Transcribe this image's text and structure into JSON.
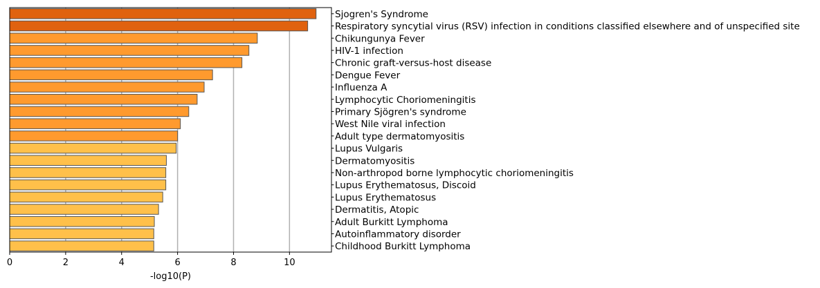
{
  "chart_data": {
    "type": "bar",
    "orientation": "horizontal",
    "xlabel": "-log10(P)",
    "ylabel": "",
    "title": "",
    "xlim": [
      0,
      11.5
    ],
    "xticks": [
      0,
      2,
      4,
      6,
      8,
      10
    ],
    "xtick_labels": [
      "0",
      "2",
      "4",
      "6",
      "8",
      "10"
    ],
    "vertical_gridlines": true,
    "category_label_side": "right",
    "categories": [
      "Sjogren's Syndrome",
      "Respiratory syncytial virus (RSV) infection in conditions classified elsewhere and of unspecified site",
      "Chikungunya Fever",
      "HIV-1 infection",
      "Chronic graft-versus-host disease",
      "Dengue Fever",
      "Influenza A",
      "Lymphocytic Choriomeningitis",
      "Primary Sjögren's syndrome",
      "West Nile viral infection",
      "Adult type dermatomyositis",
      "Lupus Vulgaris",
      "Dermatomyositis",
      "Non-arthropod borne lymphocytic choriomeningitis",
      "Lupus Erythematosus, Discoid",
      "Lupus Erythematosus",
      "Dermatitis, Atopic",
      "Adult Burkitt Lymphoma",
      "Autoinflammatory disorder",
      "Childhood Burkitt Lymphoma"
    ],
    "values": [
      10.95,
      10.65,
      8.85,
      8.55,
      8.3,
      7.25,
      6.95,
      6.7,
      6.4,
      6.1,
      6.0,
      5.95,
      5.6,
      5.58,
      5.58,
      5.47,
      5.32,
      5.17,
      5.15,
      5.15
    ],
    "bar_colors": [
      "#e0620f",
      "#e0620f",
      "#ff9a2e",
      "#ff9a2e",
      "#ff9a2e",
      "#ff9a2e",
      "#ff9a2e",
      "#ff9a2e",
      "#ff9a2e",
      "#ff9a2e",
      "#ff9a2e",
      "#ffc04a",
      "#ffc04a",
      "#ffc04a",
      "#ffc04a",
      "#ffc04a",
      "#ffc04a",
      "#ffc04a",
      "#ffc04a",
      "#ffc04a"
    ],
    "bar_edge_color": "#555555",
    "grid_color": "#b0b0b0"
  }
}
